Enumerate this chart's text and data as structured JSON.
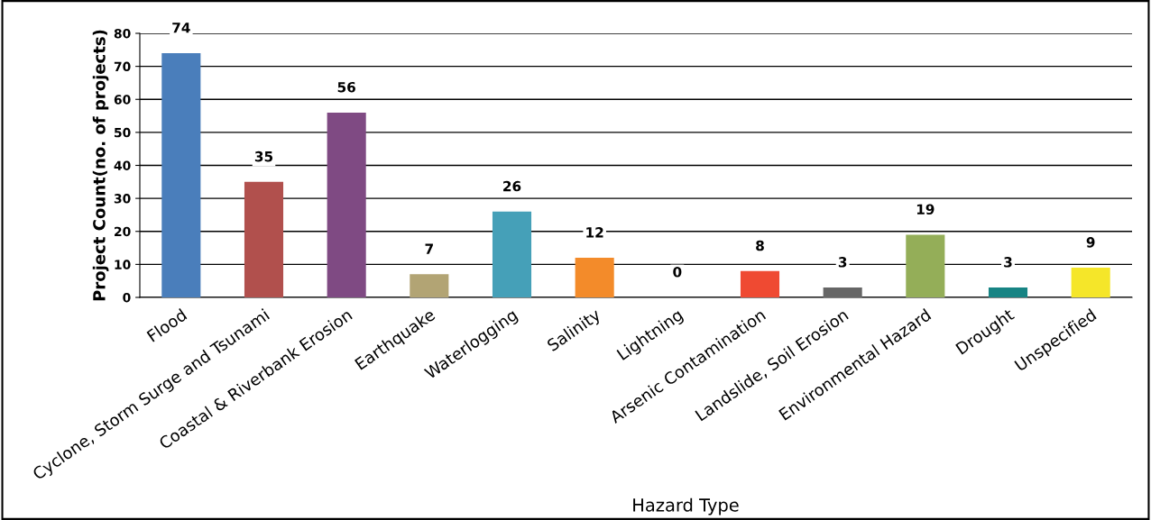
{
  "chart_data": {
    "type": "bar",
    "xlabel": "Hazard Type",
    "ylabel": "Project Count(no. of projects)",
    "categories": [
      "Flood",
      "Cyclone, Storm Surge and Tsunami",
      "Coastal & Riverbank Erosion",
      "Earthquake",
      "Waterlogging",
      "Salinity",
      "Lightning",
      "Arsenic Contamination",
      "Landslide, Soil Erosion",
      "Environmental Hazard",
      "Drought",
      "Unspecified"
    ],
    "values": [
      74,
      35,
      56,
      7,
      26,
      12,
      0,
      8,
      3,
      19,
      3,
      9
    ],
    "colors": [
      "#4a7ebb",
      "#b1504d",
      "#7f4a83",
      "#b2a474",
      "#45a0b8",
      "#f38b2a",
      "#8064a2",
      "#ef4a32",
      "#666666",
      "#94ae58",
      "#178484",
      "#f5e629"
    ],
    "ylim": [
      0,
      80
    ],
    "yticks": [
      0,
      10,
      20,
      30,
      40,
      50,
      60,
      70,
      80
    ],
    "grid": "y",
    "data_labels": true
  }
}
